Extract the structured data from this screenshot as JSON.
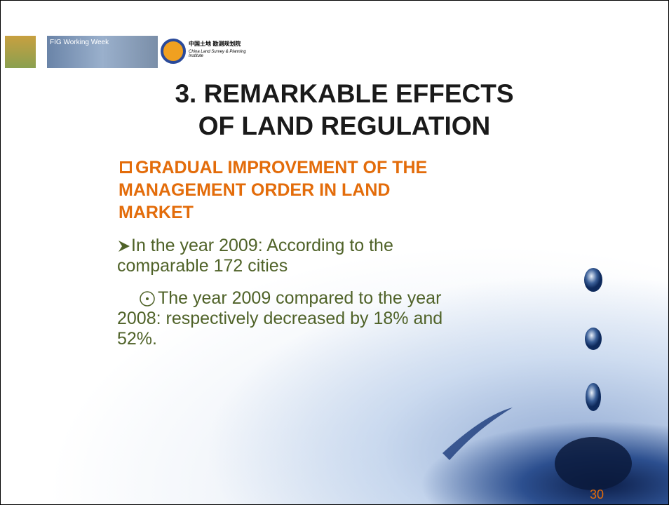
{
  "header": {
    "logos": [
      "FIG Working Week",
      "中国土地 勘测规划院",
      "China Land Survey & Planning Institute"
    ]
  },
  "title": [
    "3. REMARKABLE EFFECTS",
    "OF LAND REGULATION"
  ],
  "heading": [
    "GRADUAL IMPROVEMENT OF THE",
    "MANAGEMENT ORDER IN LAND",
    "MARKET"
  ],
  "bullets": [
    [
      "In the year 2009: According to the",
      "comparable 172 cities"
    ],
    [
      "The year 2009 compared to the year",
      "2008: respectively decreased by 18% and",
      "52%."
    ]
  ],
  "page_number": "30"
}
